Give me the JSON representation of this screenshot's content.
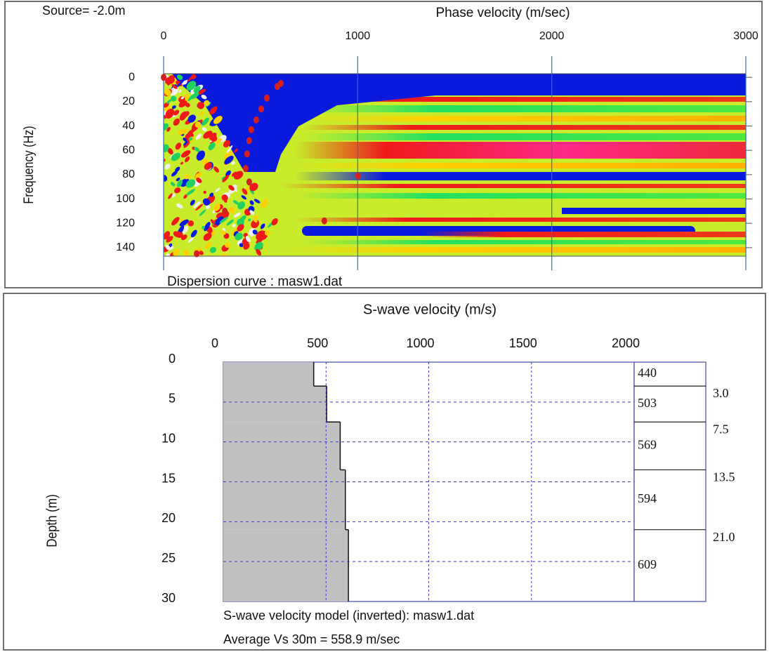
{
  "chart_data": [
    {
      "type": "scatter",
      "annotation": "Source= -2.0m",
      "title": "Phase velocity (m/sec)",
      "y_label": "Frequency (Hz)",
      "caption": "Dispersion curve : masw1.dat",
      "x": [
        0,
        604,
        586,
        532,
        503,
        477,
        452,
        441,
        430,
        423,
        441,
        315,
        170,
        1002,
        828
      ],
      "y": [
        0,
        5,
        7.5,
        17,
        26,
        35,
        43,
        52,
        63,
        75,
        86,
        110,
        145,
        81,
        118
      ],
      "color": "#d42020",
      "xlim": [
        0,
        3000
      ],
      "xticks": [
        0,
        1000,
        2000,
        3000
      ],
      "ylim": [
        -3,
        147
      ],
      "yticks": [
        0,
        20,
        40,
        60,
        80,
        100,
        120,
        140
      ],
      "grid": true,
      "grid_color": "#2a6fc0"
    },
    {
      "type": "step",
      "title": "S-wave velocity (m/s)",
      "y_label": "Depth (m)",
      "captions": [
        "S-wave velocity model (inverted): masw1.dat",
        "Average Vs 30m = 558.9 m/sec"
      ],
      "values": [
        440,
        503,
        569,
        594,
        609
      ],
      "depths": [
        3,
        7.5,
        13.5,
        21
      ],
      "depth_labels": [
        "3.0",
        "7.5",
        "13.5",
        "21.0"
      ],
      "color": "#c0c0c0",
      "xlim": [
        0,
        2000
      ],
      "xticks": [
        0,
        500,
        1000,
        1500,
        2000
      ],
      "ylim": [
        0,
        30
      ],
      "yticks": [
        0,
        5,
        10,
        15,
        20,
        25,
        30
      ],
      "grid": true,
      "grid_color": "#3a3ad0"
    }
  ]
}
